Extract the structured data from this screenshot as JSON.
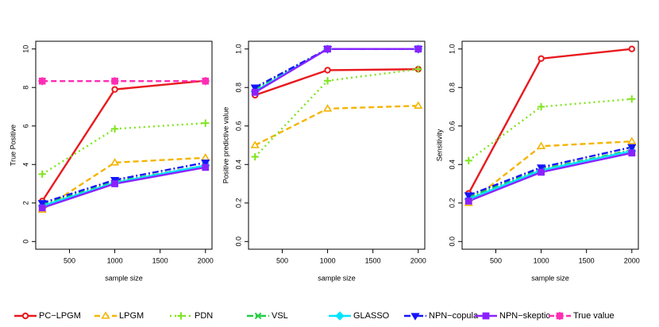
{
  "chart_data": [
    {
      "type": "line",
      "ylabel": "True Positive",
      "xlabel": "sample size",
      "legend": "bottom",
      "x": [
        200,
        1000,
        2000
      ],
      "xlim": [
        128,
        2072
      ],
      "xticks": [
        500,
        1000,
        1500,
        2000
      ],
      "ylim": [
        -0.4,
        10.4
      ],
      "yticks": [
        0,
        2,
        4,
        6,
        8,
        10
      ],
      "series": [
        {
          "name": "PC−LPGM",
          "color": "#e8191e",
          "linestyle": "solid",
          "marker": "circle",
          "values": [
            2.1,
            7.9,
            8.35
          ]
        },
        {
          "name": "LPGM",
          "color": "#f5b400",
          "linestyle": "dashed",
          "marker": "triangle",
          "values": [
            1.65,
            4.1,
            4.35
          ]
        },
        {
          "name": "PDN",
          "color": "#7fe51e",
          "linestyle": "dotted",
          "marker": "plus",
          "values": [
            3.5,
            5.85,
            6.15
          ]
        },
        {
          "name": "VSL",
          "color": "#22cc44",
          "linestyle": "dashdot",
          "marker": "x",
          "values": [
            1.9,
            3.1,
            3.95
          ]
        },
        {
          "name": "GLASSO",
          "color": "#00e5ff",
          "linestyle": "solid",
          "marker": "diamond",
          "values": [
            1.85,
            3.05,
            3.95
          ]
        },
        {
          "name": "NPN−copula",
          "color": "#1414ff",
          "linestyle": "dashdot",
          "marker": "triangle-down",
          "values": [
            2.0,
            3.2,
            4.1
          ]
        },
        {
          "name": "NPN−skeptic",
          "color": "#8a22ff",
          "linestyle": "solid",
          "marker": "square",
          "values": [
            1.75,
            3.0,
            3.85
          ]
        },
        {
          "name": "True value",
          "color": "#ff2db4",
          "linestyle": "dashed",
          "marker": "square-plus",
          "values": [
            8.33,
            8.33,
            8.33
          ]
        }
      ]
    },
    {
      "type": "line",
      "ylabel": "Positive predictive value",
      "xlabel": "sample size",
      "x": [
        200,
        1000,
        2000
      ],
      "xlim": [
        128,
        2072
      ],
      "xticks": [
        500,
        1000,
        1500,
        2000
      ],
      "ylim": [
        -0.04,
        1.04
      ],
      "yticks": [
        {
          "value": 0,
          "label": "0.0"
        },
        0.2,
        0.4,
        0.6,
        0.8,
        {
          "value": 1,
          "label": "1.0"
        }
      ],
      "series": [
        {
          "name": "PC−LPGM",
          "color": "#e8191e",
          "linestyle": "solid",
          "marker": "circle",
          "values": [
            0.76,
            0.89,
            0.895
          ]
        },
        {
          "name": "LPGM",
          "color": "#f5b400",
          "linestyle": "dashed",
          "marker": "triangle",
          "values": [
            0.5,
            0.69,
            0.705
          ]
        },
        {
          "name": "PDN",
          "color": "#7fe51e",
          "linestyle": "dotted",
          "marker": "plus",
          "values": [
            0.44,
            0.835,
            0.895
          ]
        },
        {
          "name": "VSL",
          "color": "#22cc44",
          "linestyle": "dashdot",
          "marker": "x",
          "values": [
            0.79,
            1.0,
            1.0
          ]
        },
        {
          "name": "GLASSO",
          "color": "#00e5ff",
          "linestyle": "solid",
          "marker": "diamond",
          "values": [
            0.78,
            1.0,
            1.0
          ]
        },
        {
          "name": "NPN−copula",
          "color": "#1414ff",
          "linestyle": "dashdot",
          "marker": "triangle-down",
          "values": [
            0.8,
            1.0,
            1.0
          ]
        },
        {
          "name": "NPN−skeptic",
          "color": "#8a22ff",
          "linestyle": "solid",
          "marker": "square",
          "values": [
            0.775,
            1.0,
            1.0
          ]
        }
      ]
    },
    {
      "type": "line",
      "ylabel": "Sensitivity",
      "xlabel": "sample size",
      "x": [
        200,
        1000,
        2000
      ],
      "xlim": [
        128,
        2072
      ],
      "xticks": [
        500,
        1000,
        1500,
        2000
      ],
      "ylim": [
        -0.04,
        1.04
      ],
      "yticks": [
        {
          "value": 0,
          "label": "0.0"
        },
        0.2,
        0.4,
        0.6,
        0.8,
        {
          "value": 1,
          "label": "1.0"
        }
      ],
      "series": [
        {
          "name": "PC−LPGM",
          "color": "#e8191e",
          "linestyle": "solid",
          "marker": "circle",
          "values": [
            0.25,
            0.95,
            1.0
          ]
        },
        {
          "name": "LPGM",
          "color": "#f5b400",
          "linestyle": "dashed",
          "marker": "triangle",
          "values": [
            0.2,
            0.495,
            0.52
          ]
        },
        {
          "name": "PDN",
          "color": "#7fe51e",
          "linestyle": "dotted",
          "marker": "plus",
          "values": [
            0.42,
            0.7,
            0.74
          ]
        },
        {
          "name": "VSL",
          "color": "#22cc44",
          "linestyle": "dashdot",
          "marker": "x",
          "values": [
            0.23,
            0.375,
            0.475
          ]
        },
        {
          "name": "GLASSO",
          "color": "#00e5ff",
          "linestyle": "solid",
          "marker": "diamond",
          "values": [
            0.22,
            0.37,
            0.47
          ]
        },
        {
          "name": "NPN−copula",
          "color": "#1414ff",
          "linestyle": "dashdot",
          "marker": "triangle-down",
          "values": [
            0.24,
            0.385,
            0.49
          ]
        },
        {
          "name": "NPN−skeptic",
          "color": "#8a22ff",
          "linestyle": "solid",
          "marker": "square",
          "values": [
            0.21,
            0.36,
            0.46
          ]
        }
      ]
    }
  ]
}
